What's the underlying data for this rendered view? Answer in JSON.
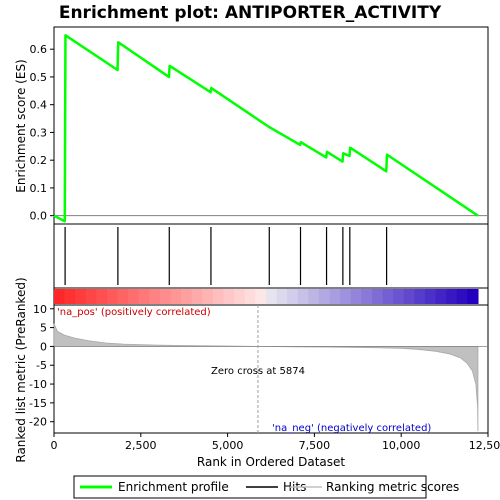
{
  "chart_data": {
    "type": "line",
    "title": "Enrichment plot: ANTIPORTER_ACTIVITY",
    "xlabel": "Rank in Ordered Dataset",
    "ylabel_top": "Enrichment score (ES)",
    "ylabel_bottom": "Ranked list metric (PreRanked)",
    "xlim": [
      0,
      12500
    ],
    "x_ticks": [
      0,
      2500,
      5000,
      7500,
      10000,
      12500
    ],
    "x_tick_labels": [
      "0",
      "2,500",
      "5,000",
      "7,500",
      "10,000",
      "12,500"
    ],
    "es_ylim": [
      -0.03,
      0.68
    ],
    "es_ticks": [
      0.0,
      0.1,
      0.2,
      0.3,
      0.4,
      0.5,
      0.6
    ],
    "es_tick_labels": [
      "0.0",
      "0.1",
      "0.2",
      "0.3",
      "0.4",
      "0.5",
      "0.6"
    ],
    "metric_ylim": [
      -23,
      11
    ],
    "metric_ticks": [
      10,
      5,
      0,
      -5,
      -10,
      -15,
      -20
    ],
    "metric_tick_labels": [
      "10",
      "5",
      "0",
      "-5",
      "-10",
      "-15",
      "-20"
    ],
    "enrichment_profile": {
      "x": [
        0,
        310,
        330,
        1830,
        1850,
        3310,
        3330,
        4510,
        4530,
        6190,
        7090,
        7110,
        7840,
        7860,
        8310,
        8330,
        8510,
        8530,
        9570,
        9590,
        12210
      ],
      "y": [
        0.0,
        -0.02,
        0.65,
        0.525,
        0.625,
        0.5,
        0.54,
        0.445,
        0.46,
        0.32,
        0.255,
        0.265,
        0.21,
        0.23,
        0.195,
        0.225,
        0.215,
        0.245,
        0.16,
        0.22,
        0.0
      ]
    },
    "hits": [
      320,
      1840,
      3320,
      4520,
      6200,
      7100,
      7850,
      8320,
      8520,
      9580
    ],
    "ranked_metric": {
      "x": [
        0,
        100,
        300,
        600,
        1000,
        1500,
        2000,
        3000,
        4000,
        5000,
        5874,
        7000,
        8000,
        9000,
        10000,
        10500,
        11000,
        11400,
        11700,
        11900,
        12050,
        12150,
        12200,
        12210
      ],
      "y": [
        6.0,
        4.0,
        3.0,
        2.2,
        1.5,
        0.9,
        0.6,
        0.35,
        0.2,
        0.1,
        0.0,
        -0.1,
        -0.2,
        -0.3,
        -0.5,
        -0.8,
        -1.3,
        -2.0,
        -3.0,
        -4.5,
        -6.5,
        -10.0,
        -16.0,
        -22.5
      ]
    },
    "zero_cross": 5874,
    "annotations": {
      "na_pos": "'na_pos' (positively correlated)",
      "na_neg": "'na_neg' (negatively correlated)",
      "zero_cross": "Zero cross at 5874"
    },
    "legend": [
      "Enrichment profile",
      "Hits",
      "Ranking metric scores"
    ],
    "colors": {
      "profile": "#00ff00",
      "hits": "#000000",
      "metric": "#c0c0c0",
      "pos_label": "#cc0000",
      "neg_label": "#0000cc",
      "heat_red": "#ff0000",
      "heat_blue": "#0000cc"
    }
  }
}
